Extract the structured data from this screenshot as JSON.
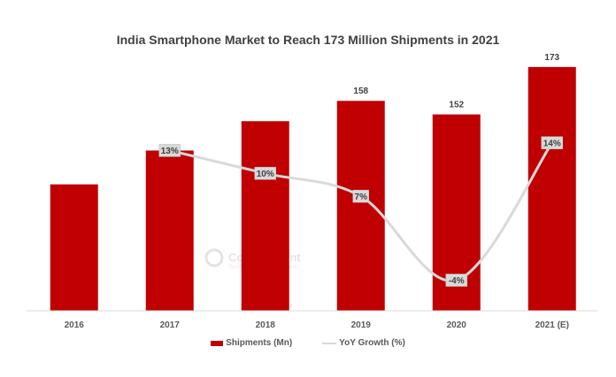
{
  "chart_data": {
    "type": "bar",
    "title": "India Smartphone Market to Reach 173 Million Shipments in 2021",
    "categories": [
      "2016",
      "2017",
      "2018",
      "2019",
      "2020",
      "2021 (E)"
    ],
    "series": [
      {
        "name": "Shipments (Mn)",
        "type": "bar",
        "axis": "primary",
        "values": [
          121,
          136,
          149,
          158,
          152,
          173
        ],
        "data_labels": [
          null,
          null,
          null,
          "158",
          "152",
          "173"
        ],
        "color": "#C00000"
      },
      {
        "name": "YoY Growth (%)",
        "type": "line",
        "axis": "secondary",
        "smooth": true,
        "values": [
          null,
          13,
          10,
          7,
          -4,
          14
        ],
        "data_labels": [
          null,
          "13%",
          "10%",
          "7%",
          "-4%",
          "14%"
        ],
        "color": "#D9D9D9"
      }
    ],
    "ylim": [
      65,
      180
    ],
    "y2lim": [
      -8,
      26
    ],
    "grid": false,
    "legend": "bottom",
    "watermark": {
      "brand": "Counterpoint",
      "tagline": "Technology Market Research"
    }
  }
}
